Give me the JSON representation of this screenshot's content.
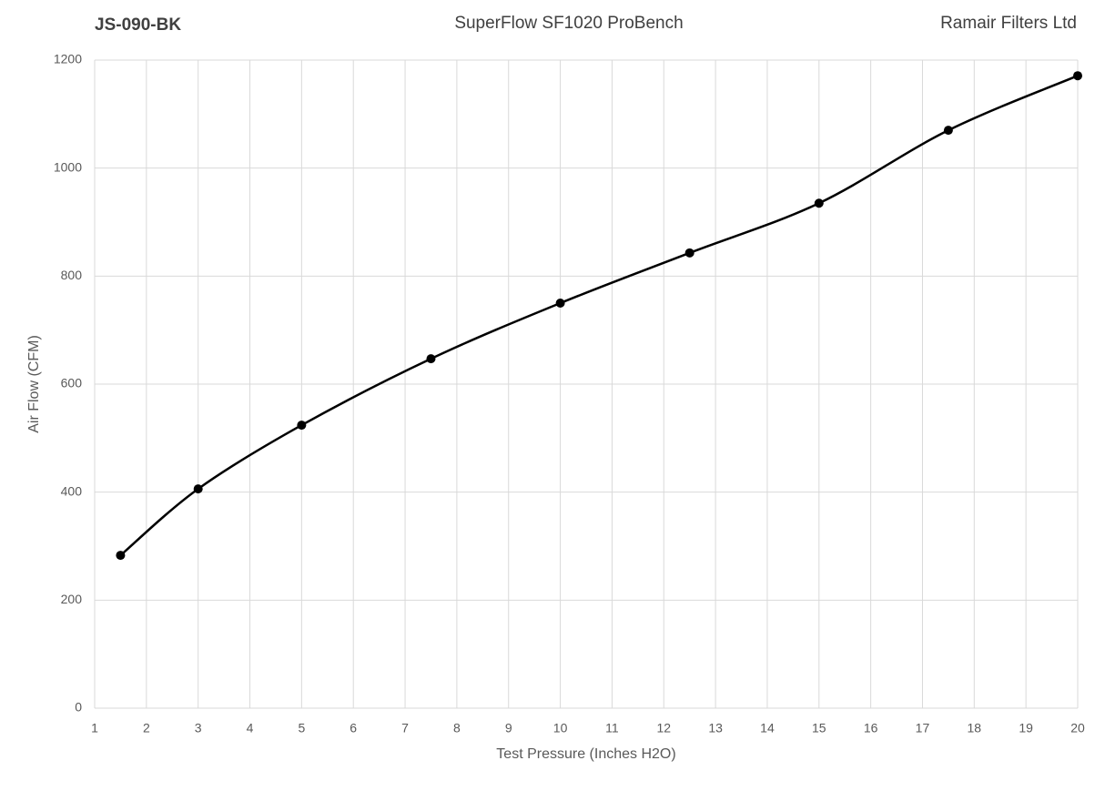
{
  "chart_data": {
    "type": "line",
    "title": "SuperFlow SF1020 ProBench",
    "label_left": "JS-090-BK",
    "label_right": "Ramair Filters Ltd",
    "x_label": "Test Pressure (Inches H2O)",
    "y_label": "Air Flow (CFM)",
    "x": [
      1.5,
      3,
      5,
      7.5,
      10,
      12.5,
      15,
      17.5,
      20
    ],
    "values": [
      283,
      406,
      524,
      647,
      750,
      843,
      935,
      1070,
      1171
    ],
    "color": "#000000",
    "smooth": true,
    "markers": true,
    "xlim": [
      1,
      20
    ],
    "xticks": [
      1,
      2,
      3,
      4,
      5,
      6,
      7,
      8,
      9,
      10,
      11,
      12,
      13,
      14,
      15,
      16,
      17,
      18,
      19,
      20
    ],
    "ylim": [
      0,
      1200
    ],
    "yticks": [
      0,
      200,
      400,
      600,
      800,
      1000,
      1200
    ],
    "grid": true
  }
}
